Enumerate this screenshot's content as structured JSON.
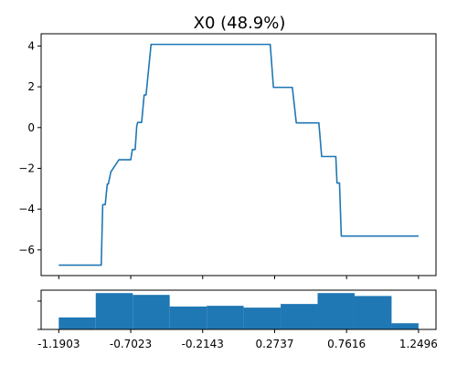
{
  "chart_data": [
    {
      "type": "line",
      "title": "X0 (48.9%)",
      "xlabel": "",
      "ylabel": "",
      "xlim": [
        -1.31,
        1.368
      ],
      "ylim": [
        -7.26,
        4.6
      ],
      "yticks": [
        4,
        2,
        0,
        -2,
        -4,
        -6
      ],
      "ytick_labels": [
        "4",
        "2",
        "0",
        "−2",
        "−4",
        "−6"
      ],
      "xticks": [
        -1.1903,
        -0.7023,
        -0.2143,
        0.2737,
        0.7616,
        1.2496
      ],
      "color": "#1f77b4",
      "series": [
        {
          "name": "",
          "x": [
            -1.1903,
            -0.9023,
            -0.8923,
            -0.8753,
            -0.8613,
            -0.8543,
            -0.8373,
            -0.7823,
            -0.7023,
            -0.6913,
            -0.6723,
            -0.6613,
            -0.6553,
            -0.6283,
            -0.6113,
            -0.5983,
            -0.5643,
            0.2437,
            0.2657,
            0.3937,
            0.4207,
            0.5737,
            0.5927,
            0.6887,
            0.6967,
            0.7137,
            0.7257,
            1.2496
          ],
          "y": [
            -6.75,
            -6.75,
            -3.78,
            -3.78,
            -2.77,
            -2.77,
            -2.18,
            -1.58,
            -1.58,
            -1.08,
            -1.08,
            0.08,
            0.25,
            0.25,
            1.6,
            1.6,
            4.08,
            4.08,
            1.97,
            1.97,
            0.23,
            0.23,
            -1.42,
            -1.42,
            -2.72,
            -2.72,
            -5.32,
            -5.32
          ]
        }
      ]
    },
    {
      "type": "bar",
      "title": "",
      "xlabel": "",
      "ylabel": "",
      "bin_edges": [
        -1.1903,
        -0.9395,
        -0.6887,
        -0.4379,
        -0.1871,
        0.0637,
        0.3145,
        0.5653,
        0.8161,
        1.0669,
        1.2496
      ],
      "values": [
        0.33,
        1.0,
        0.95,
        0.63,
        0.65,
        0.6,
        0.7,
        1.0,
        0.92,
        0.17
      ],
      "ylim": [
        0,
        1.08
      ],
      "xticks": [
        -1.1903,
        -0.7023,
        -0.2143,
        0.2737,
        0.7616,
        1.2496
      ],
      "xtick_labels": [
        "-1.1903",
        "-0.7023",
        "-0.2143",
        "0.2737",
        "0.7616",
        "1.2496"
      ],
      "color": "#1f77b4"
    }
  ]
}
